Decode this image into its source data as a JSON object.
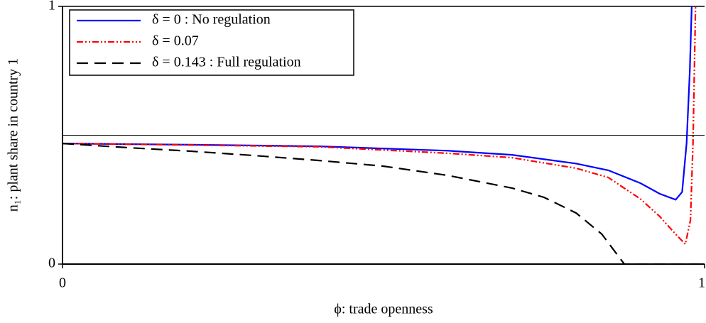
{
  "chart_data": {
    "type": "line",
    "xlabel": "ϕ: trade openness",
    "ylabel": "n₁: plant share in country 1",
    "xlim": [
      0,
      1
    ],
    "ylim": [
      0,
      1
    ],
    "xticks": [
      0,
      1
    ],
    "yticks": [
      0,
      1
    ],
    "hline": 0.5,
    "legend": "upper left",
    "series": [
      {
        "name": "δ = 0 : No regulation",
        "color": "#0000ff",
        "style": "solid",
        "x": [
          0,
          0.2,
          0.4,
          0.6,
          0.7,
          0.8,
          0.85,
          0.9,
          0.93,
          0.955,
          0.965,
          0.972,
          0.977,
          0.98
        ],
        "values": [
          0.468,
          0.463,
          0.457,
          0.44,
          0.424,
          0.39,
          0.364,
          0.314,
          0.273,
          0.25,
          0.28,
          0.47,
          0.75,
          1
        ]
      },
      {
        "name": "δ = 0.07",
        "color": "#ff0000",
        "style": "dashdotdot",
        "x": [
          0,
          0.2,
          0.4,
          0.6,
          0.7,
          0.8,
          0.85,
          0.9,
          0.93,
          0.955,
          0.97,
          0.978,
          0.982,
          0.986
        ],
        "values": [
          0.468,
          0.462,
          0.455,
          0.43,
          0.413,
          0.372,
          0.336,
          0.253,
          0.185,
          0.116,
          0.077,
          0.17,
          0.47,
          1
        ]
      },
      {
        "name": "δ = 0.143 : Full regulation",
        "color": "#000000",
        "style": "dashed",
        "x": [
          0,
          0.1,
          0.2,
          0.3,
          0.4,
          0.5,
          0.6,
          0.7,
          0.75,
          0.8,
          0.84,
          0.875,
          1
        ],
        "values": [
          0.468,
          0.452,
          0.438,
          0.421,
          0.402,
          0.38,
          0.344,
          0.295,
          0.259,
          0.198,
          0.116,
          0,
          0
        ]
      }
    ]
  }
}
